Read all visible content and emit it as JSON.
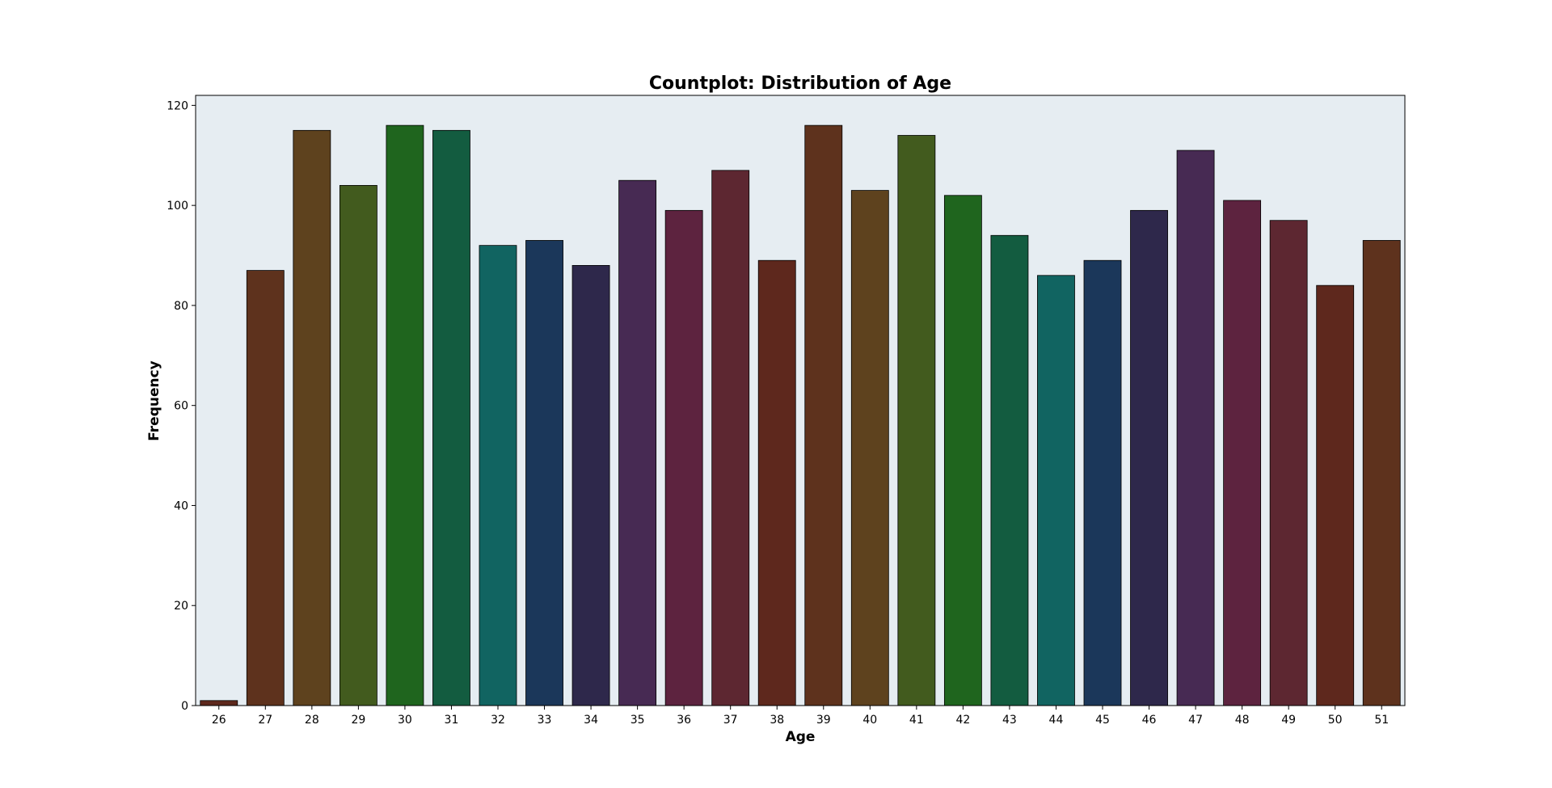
{
  "chart_data": {
    "type": "bar",
    "title": "Countplot: Distribution of Age",
    "xlabel": "Age",
    "ylabel": "Frequency",
    "ylim": [
      0,
      122
    ],
    "yticks": [
      "0",
      "20",
      "40",
      "60",
      "80",
      "100",
      "120"
    ],
    "grid": false,
    "background": "#e6edf2",
    "categories": [
      "26",
      "27",
      "28",
      "29",
      "30",
      "31",
      "32",
      "33",
      "34",
      "35",
      "36",
      "37",
      "38",
      "39",
      "40",
      "41",
      "42",
      "43",
      "44",
      "45",
      "46",
      "47",
      "48",
      "49",
      "50",
      "51"
    ],
    "values": [
      1,
      87,
      115,
      104,
      116,
      115,
      92,
      93,
      88,
      105,
      99,
      107,
      89,
      116,
      103,
      114,
      102,
      94,
      86,
      89,
      99,
      111,
      101,
      97,
      84,
      93
    ],
    "colors": [
      "#5e281d",
      "#5e321d",
      "#5e421e",
      "#425b1e",
      "#1f651e",
      "#135c40",
      "#116461",
      "#1b375a",
      "#2e284b",
      "#472a53",
      "#5d233f",
      "#5d2731",
      "#5e281d",
      "#5e321d",
      "#5e421e",
      "#425b1e",
      "#1f651e",
      "#135c40",
      "#116461",
      "#1b375a",
      "#2e284b",
      "#472a53",
      "#5d233f",
      "#5d2731",
      "#5e281d",
      "#5e321d"
    ]
  }
}
